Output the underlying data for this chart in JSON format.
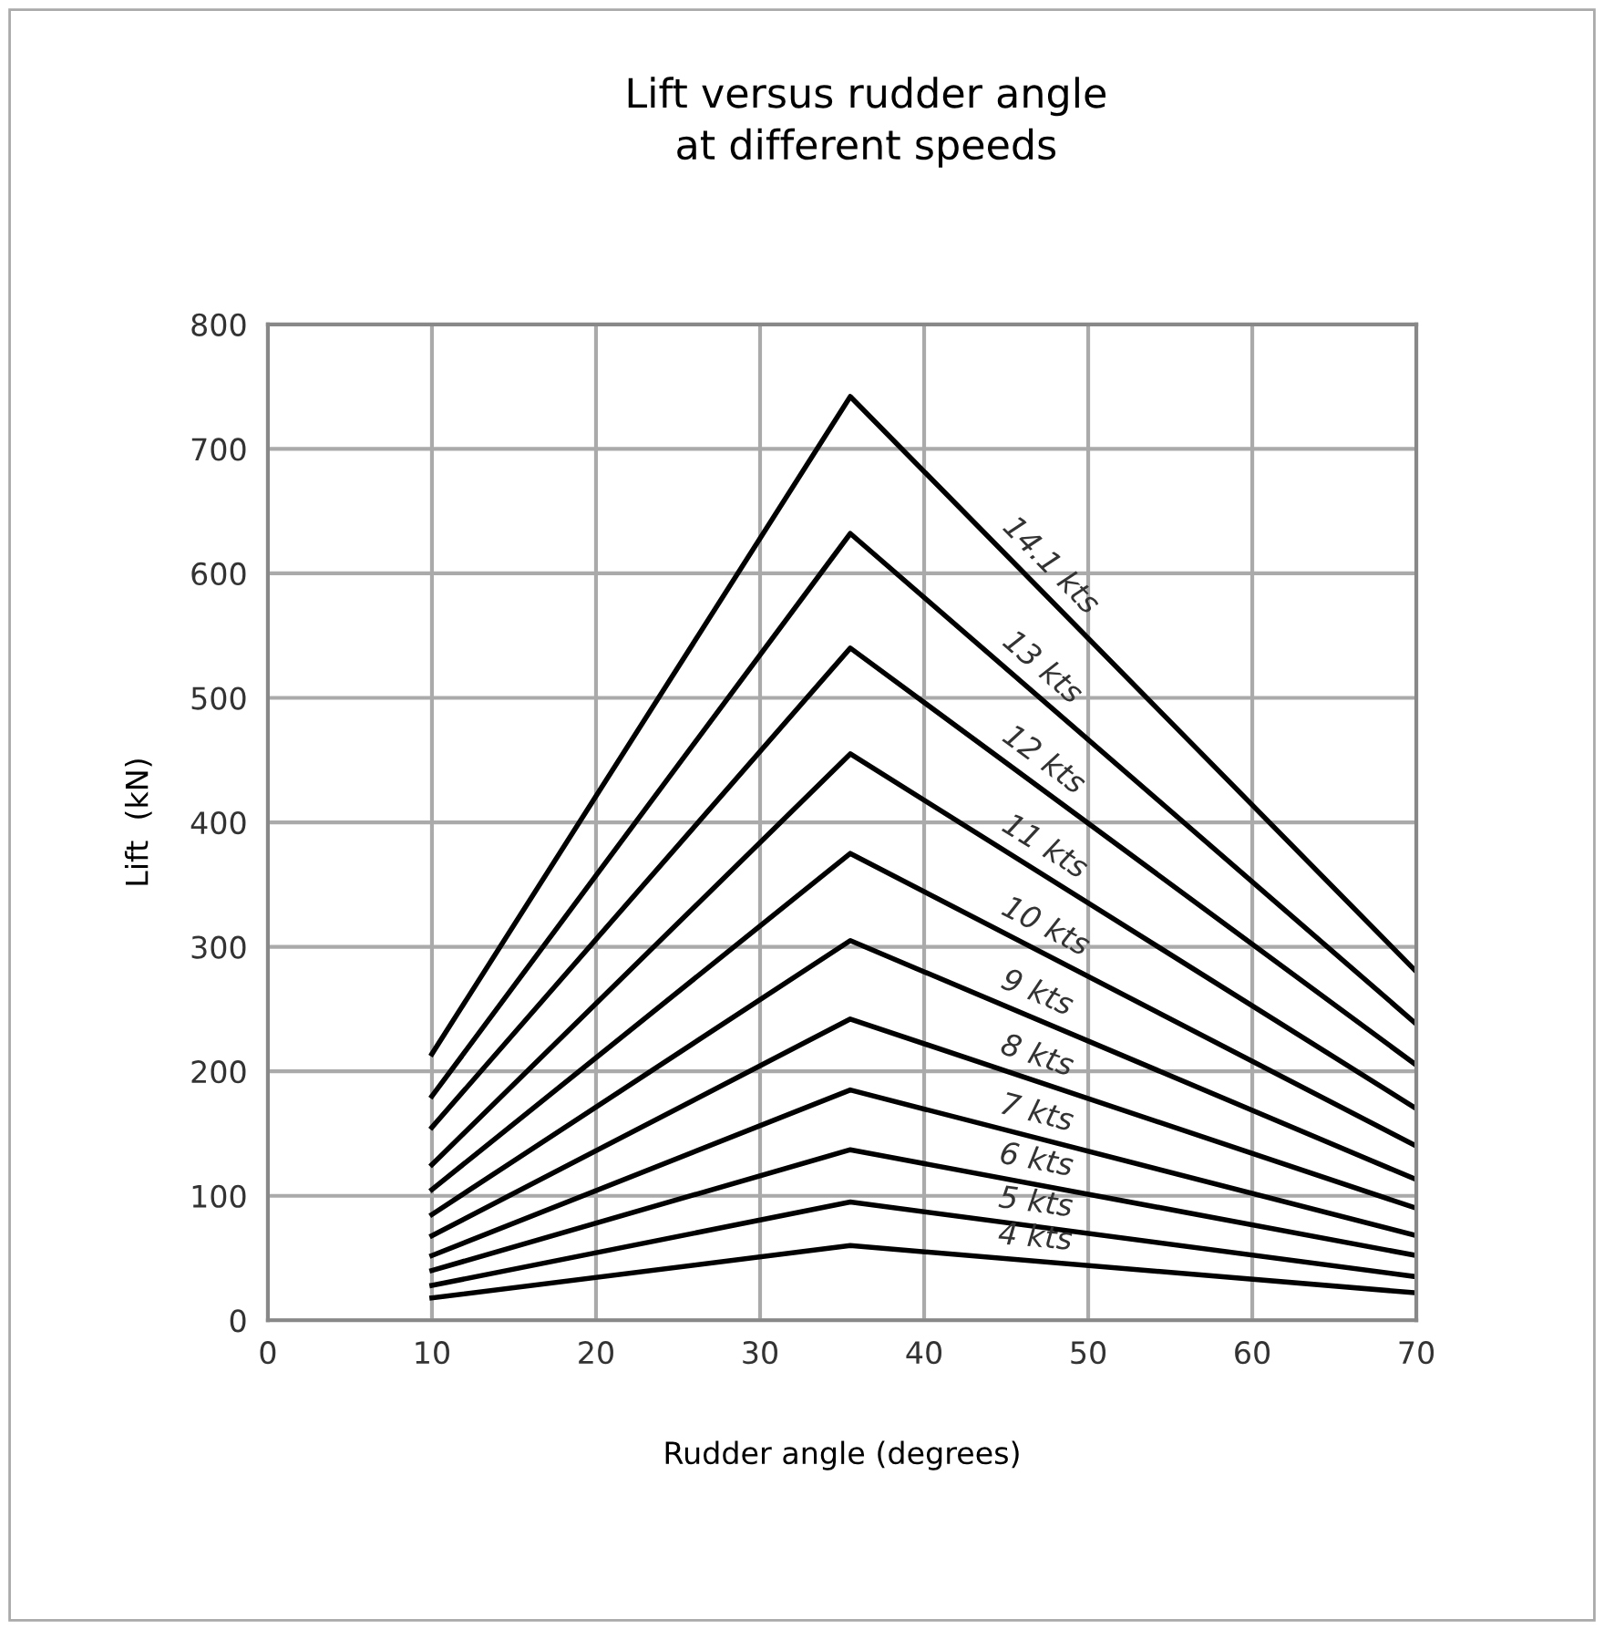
{
  "chart_data": {
    "type": "line",
    "title": "Lift versus rudder angle\nat different speeds",
    "xlabel": "Rudder angle (degrees)",
    "ylabel": "Lift  (kN)",
    "x": [
      10,
      35.5,
      70
    ],
    "series": [
      {
        "name": "14.1 kts",
        "color": "#000000",
        "values": [
          214,
          742,
          280
        ]
      },
      {
        "name": "13 kts",
        "color": "#000000",
        "values": [
          180,
          632,
          238
        ]
      },
      {
        "name": "12 kts",
        "color": "#000000",
        "values": [
          155,
          540,
          205
        ]
      },
      {
        "name": "11 kts",
        "color": "#000000",
        "values": [
          125,
          455,
          170
        ]
      },
      {
        "name": "10 kts",
        "color": "#000000",
        "values": [
          105,
          375,
          140
        ]
      },
      {
        "name": "9 kts",
        "color": "#000000",
        "values": [
          85,
          305,
          113
        ]
      },
      {
        "name": "8 kts",
        "color": "#000000",
        "values": [
          68,
          242,
          90
        ]
      },
      {
        "name": "7 kts",
        "color": "#000000",
        "values": [
          52,
          185,
          68
        ]
      },
      {
        "name": "6 kts",
        "color": "#000000",
        "values": [
          40,
          137,
          52
        ]
      },
      {
        "name": "5 kts",
        "color": "#000000",
        "values": [
          28,
          95,
          35
        ]
      },
      {
        "name": "4 kts",
        "color": "#000000",
        "values": [
          18,
          60,
          22
        ]
      }
    ],
    "xlim": [
      0,
      70
    ],
    "xticks": [
      0,
      10,
      20,
      30,
      40,
      50,
      60,
      70
    ],
    "ylim": [
      0,
      800
    ],
    "yticks": [
      0,
      100,
      200,
      300,
      400,
      500,
      600,
      700,
      800
    ],
    "grid": true,
    "legend": false,
    "marker": "none",
    "line_style": "solid"
  }
}
